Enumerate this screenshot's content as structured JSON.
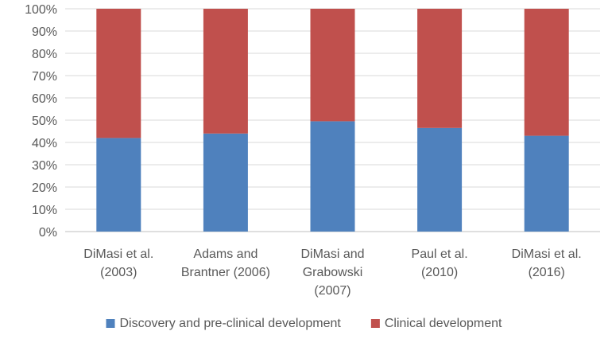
{
  "chart_data": {
    "type": "bar",
    "stacked": true,
    "title": "",
    "xlabel": "",
    "ylabel": "",
    "ylim": [
      0,
      100
    ],
    "y_ticks": [
      "0%",
      "10%",
      "20%",
      "30%",
      "40%",
      "50%",
      "60%",
      "70%",
      "80%",
      "90%",
      "100%"
    ],
    "grid": true,
    "legend_position": "bottom",
    "categories": [
      [
        "DiMasi et al.",
        "(2003)"
      ],
      [
        "Adams and",
        "Brantner (2006)"
      ],
      [
        "DiMasi and",
        "Grabowski",
        "(2007)"
      ],
      [
        "Paul et al.",
        "(2010)"
      ],
      [
        "DiMasi et al.",
        "(2016)"
      ]
    ],
    "series": [
      {
        "name": "Discovery and pre-clinical development",
        "color": "#4f81bd",
        "values": [
          42,
          44,
          49.5,
          46.5,
          43
        ]
      },
      {
        "name": "Clinical development",
        "color": "#c0504d",
        "values": [
          58,
          56,
          50.5,
          53.5,
          57
        ]
      }
    ]
  }
}
